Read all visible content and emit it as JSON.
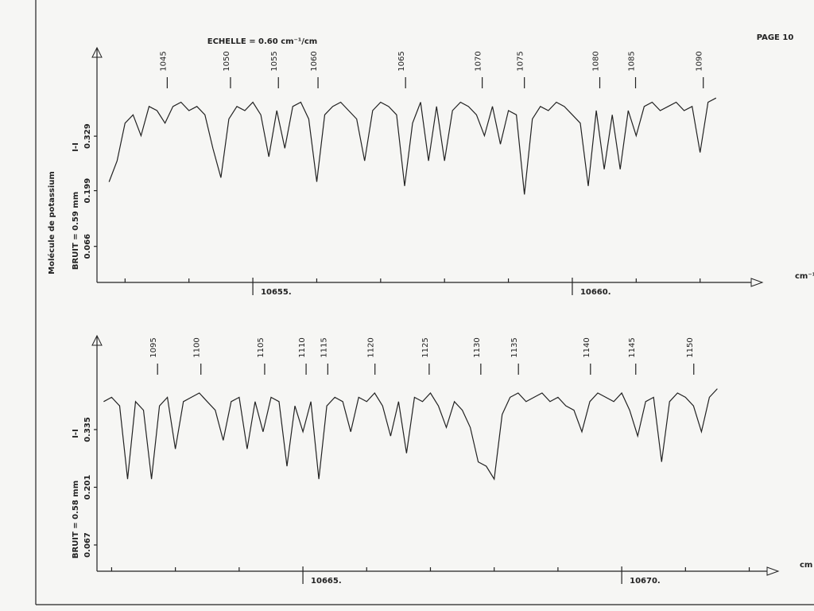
{
  "page": "PAGE 10",
  "chart_data": [
    {
      "type": "line",
      "title": "ECHELLE = 0.60 cm⁻¹/cm",
      "y_label": "BRUIT = 0.59 mm",
      "y_label_2": "Molécule de potassium",
      "y_symbol": "I-I",
      "x_label": "cm⁻¹",
      "color": "#222222",
      "xlim": [
        10652.66,
        10662.8
      ],
      "xticks": [
        {
          "value": 10655,
          "label": "10655."
        },
        {
          "value": 10660,
          "label": "10660."
        }
      ],
      "xminorticks": [
        10653,
        10654,
        10656,
        10657,
        10658,
        10659,
        10661,
        10662
      ],
      "ylim": [
        -0.02,
        0.54
      ],
      "yticks": [
        0.066,
        0.199,
        0.329
      ],
      "line_assignments": {
        "labels": [
          1045,
          1050,
          1055,
          1060,
          1065,
          1070,
          1075,
          1080,
          1085,
          1090
        ],
        "x": [
          10653.66,
          10654.65,
          10655.4,
          10656.02,
          10657.39,
          10658.59,
          10659.25,
          10660.43,
          10660.99,
          10662.05
        ]
      },
      "x": [
        10652.75,
        10652.875,
        10653,
        10653.125,
        10653.25,
        10653.375,
        10653.5,
        10653.625,
        10653.75,
        10653.875,
        10654,
        10654.125,
        10654.25,
        10654.375,
        10654.5,
        10654.625,
        10654.75,
        10654.875,
        10655,
        10655.125,
        10655.25,
        10655.375,
        10655.5,
        10655.625,
        10655.75,
        10655.875,
        10656,
        10656.125,
        10656.25,
        10656.375,
        10656.5,
        10656.625,
        10656.75,
        10656.875,
        10657,
        10657.125,
        10657.25,
        10657.375,
        10657.5,
        10657.625,
        10657.75,
        10657.875,
        10658,
        10658.125,
        10658.25,
        10658.375,
        10658.5,
        10658.625,
        10658.75,
        10658.875,
        10659,
        10659.125,
        10659.25,
        10659.375,
        10659.5,
        10659.625,
        10659.75,
        10659.875,
        10660,
        10660.125,
        10660.25,
        10660.375,
        10660.5,
        10660.625,
        10660.75,
        10660.875,
        10661,
        10661.125,
        10661.25,
        10661.375,
        10661.5,
        10661.625,
        10661.75,
        10661.875,
        10662,
        10662.125,
        10662.25
      ],
      "values": [
        0.22,
        0.27,
        0.36,
        0.38,
        0.33,
        0.4,
        0.39,
        0.36,
        0.4,
        0.41,
        0.39,
        0.4,
        0.38,
        0.3,
        0.23,
        0.37,
        0.4,
        0.39,
        0.41,
        0.38,
        0.28,
        0.39,
        0.3,
        0.4,
        0.41,
        0.37,
        0.22,
        0.38,
        0.4,
        0.41,
        0.39,
        0.37,
        0.27,
        0.39,
        0.41,
        0.4,
        0.38,
        0.21,
        0.36,
        0.41,
        0.27,
        0.4,
        0.27,
        0.39,
        0.41,
        0.4,
        0.38,
        0.33,
        0.4,
        0.31,
        0.39,
        0.38,
        0.19,
        0.37,
        0.4,
        0.39,
        0.41,
        0.4,
        0.38,
        0.36,
        0.21,
        0.39,
        0.25,
        0.38,
        0.25,
        0.39,
        0.33,
        0.4,
        0.41,
        0.39,
        0.4,
        0.41,
        0.39,
        0.4,
        0.29,
        0.41,
        0.42
      ]
    },
    {
      "type": "line",
      "y_label": "BRUIT = 0.58 mm",
      "y_symbol": "I-I",
      "x_label": "cm",
      "color": "#222222",
      "xlim": [
        10661.87,
        10672.28
      ],
      "xticks": [
        {
          "value": 10665,
          "label": "10665."
        },
        {
          "value": 10670,
          "label": "10670."
        }
      ],
      "xminorticks": [
        10662,
        10663,
        10664,
        10666,
        10667,
        10668,
        10669,
        10671,
        10672
      ],
      "ylim": [
        0.006,
        0.553
      ],
      "yticks": [
        0.067,
        0.201,
        0.335
      ],
      "line_assignments": {
        "labels": [
          1095,
          1100,
          1105,
          1110,
          1115,
          1120,
          1125,
          1130,
          1135,
          1140,
          1145,
          1150
        ],
        "x": [
          10662.72,
          10663.4,
          10664.4,
          10665.05,
          10665.39,
          10666.13,
          10666.98,
          10667.79,
          10668.38,
          10669.51,
          10670.22,
          10671.13
        ]
      },
      "x": [
        10661.875,
        10662,
        10662.125,
        10662.25,
        10662.375,
        10662.5,
        10662.625,
        10662.75,
        10662.875,
        10663,
        10663.125,
        10663.25,
        10663.375,
        10663.5,
        10663.625,
        10663.75,
        10663.875,
        10664,
        10664.125,
        10664.25,
        10664.375,
        10664.5,
        10664.625,
        10664.75,
        10664.875,
        10665,
        10665.125,
        10665.25,
        10665.375,
        10665.5,
        10665.625,
        10665.75,
        10665.875,
        10666,
        10666.125,
        10666.25,
        10666.375,
        10666.5,
        10666.625,
        10666.75,
        10666.875,
        10667,
        10667.125,
        10667.25,
        10667.375,
        10667.5,
        10667.625,
        10667.75,
        10667.875,
        10668,
        10668.125,
        10668.25,
        10668.375,
        10668.5,
        10668.625,
        10668.75,
        10668.875,
        10669,
        10669.125,
        10669.25,
        10669.375,
        10669.5,
        10669.625,
        10669.75,
        10669.875,
        10670,
        10670.125,
        10670.25,
        10670.375,
        10670.5,
        10670.625,
        10670.75,
        10670.875,
        10671,
        10671.125,
        10671.25,
        10671.375,
        10671.5
      ],
      "values": [
        0.4,
        0.41,
        0.39,
        0.22,
        0.4,
        0.38,
        0.22,
        0.39,
        0.41,
        0.29,
        0.4,
        0.41,
        0.42,
        0.4,
        0.38,
        0.31,
        0.4,
        0.41,
        0.29,
        0.4,
        0.33,
        0.41,
        0.4,
        0.25,
        0.39,
        0.33,
        0.4,
        0.22,
        0.39,
        0.41,
        0.4,
        0.33,
        0.41,
        0.4,
        0.42,
        0.39,
        0.32,
        0.4,
        0.28,
        0.41,
        0.4,
        0.42,
        0.39,
        0.34,
        0.4,
        0.38,
        0.34,
        0.26,
        0.25,
        0.22,
        0.37,
        0.41,
        0.42,
        0.4,
        0.41,
        0.42,
        0.4,
        0.41,
        0.39,
        0.38,
        0.33,
        0.4,
        0.42,
        0.41,
        0.4,
        0.42,
        0.38,
        0.32,
        0.4,
        0.41,
        0.26,
        0.4,
        0.42,
        0.41,
        0.39,
        0.33,
        0.41,
        0.43
      ]
    }
  ]
}
